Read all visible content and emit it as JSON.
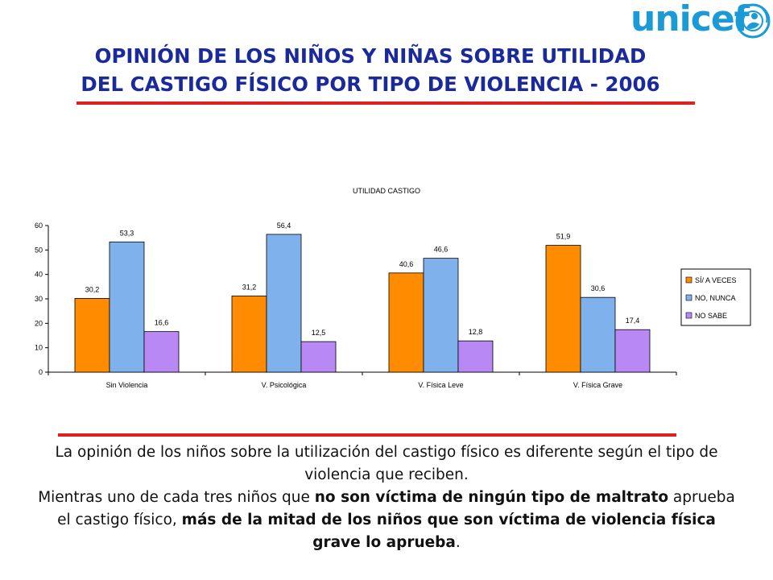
{
  "header": {
    "logo_text": "unicef",
    "title_line1": "OPINIÓN DE LOS NIÑOS Y NIÑAS SOBRE UTILIDAD",
    "title_line2": "DEL CASTIGO FÍSICO POR TIPO DE VIOLENCIA - 2006"
  },
  "colors": {
    "title": "#1a2a9a",
    "rule": "#e02020",
    "logo": "#1a9ad6"
  },
  "chart_data": {
    "type": "bar",
    "title": "UTILIDAD CASTIGO",
    "xlabel": "",
    "ylabel": "",
    "categories": [
      "Sin Violencia",
      "V. Psicológica",
      "V. Física Leve",
      "V. Física Grave"
    ],
    "series": [
      {
        "name": "SÍ/ A VECES",
        "values": [
          30.2,
          31.2,
          40.6,
          51.9
        ],
        "labels": [
          "30,2",
          "31,2",
          "40,6",
          "51,9"
        ],
        "color": "#ff8c00"
      },
      {
        "name": "NO, NUNCA",
        "values": [
          53.3,
          56.4,
          46.6,
          30.6
        ],
        "labels": [
          "53,3",
          "56,4",
          "46,6",
          "30,6"
        ],
        "color": "#7fb2ec"
      },
      {
        "name": "NO SABE",
        "values": [
          16.6,
          12.5,
          12.8,
          17.4
        ],
        "labels": [
          "16,6",
          "12,5",
          "12,8",
          "17,4"
        ],
        "color": "#b889f5"
      }
    ],
    "ylim": [
      0,
      60
    ],
    "yticks": [
      0,
      10,
      20,
      30,
      40,
      50,
      60
    ],
    "grid": false,
    "legend": "right"
  },
  "text": {
    "p1": "La opinión de los niños sobre la utilización del castigo físico es diferente según el tipo de violencia que reciben.",
    "p2_a": "Mientras uno de cada tres niños que ",
    "p2_b": "no son víctima de ningún tipo de maltrato",
    "p2_c": " aprueba el castigo físico, ",
    "p2_d": "más de la mitad de los niños que son víctima de violencia física grave lo aprueba",
    "p2_e": "."
  }
}
